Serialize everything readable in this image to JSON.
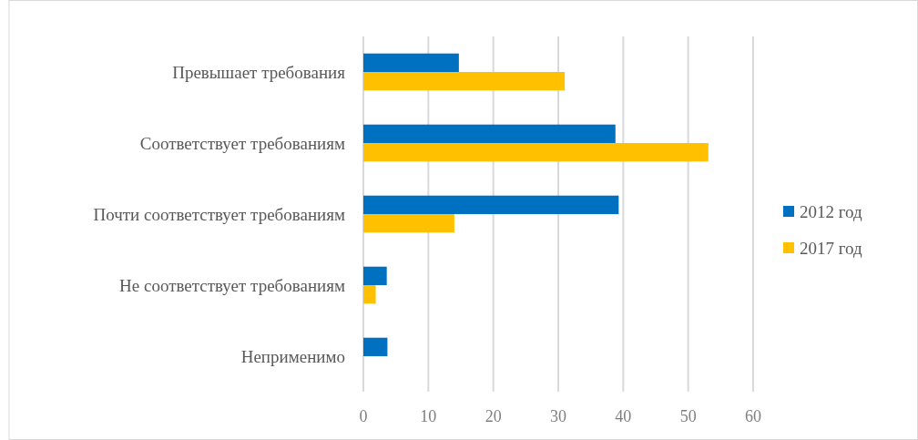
{
  "chart_data": {
    "type": "bar",
    "orientation": "horizontal",
    "categories": [
      "Превышает требования",
      "Соответствует требованиям",
      "Почти соответствует требованиям",
      "Не соответствует требованиям",
      "Неприменимо"
    ],
    "series": [
      {
        "name": "2012 год",
        "color": "#0070c0",
        "values": [
          14.7,
          38.8,
          39.3,
          3.6,
          3.7
        ]
      },
      {
        "name": "2017 год",
        "color": "#ffc000",
        "values": [
          31.0,
          53.1,
          14.0,
          1.9,
          null
        ]
      }
    ],
    "xlim": [
      0,
      60
    ],
    "xticks": [
      0,
      10,
      20,
      30,
      40,
      50,
      60
    ],
    "grid": "x",
    "legend": "right"
  }
}
